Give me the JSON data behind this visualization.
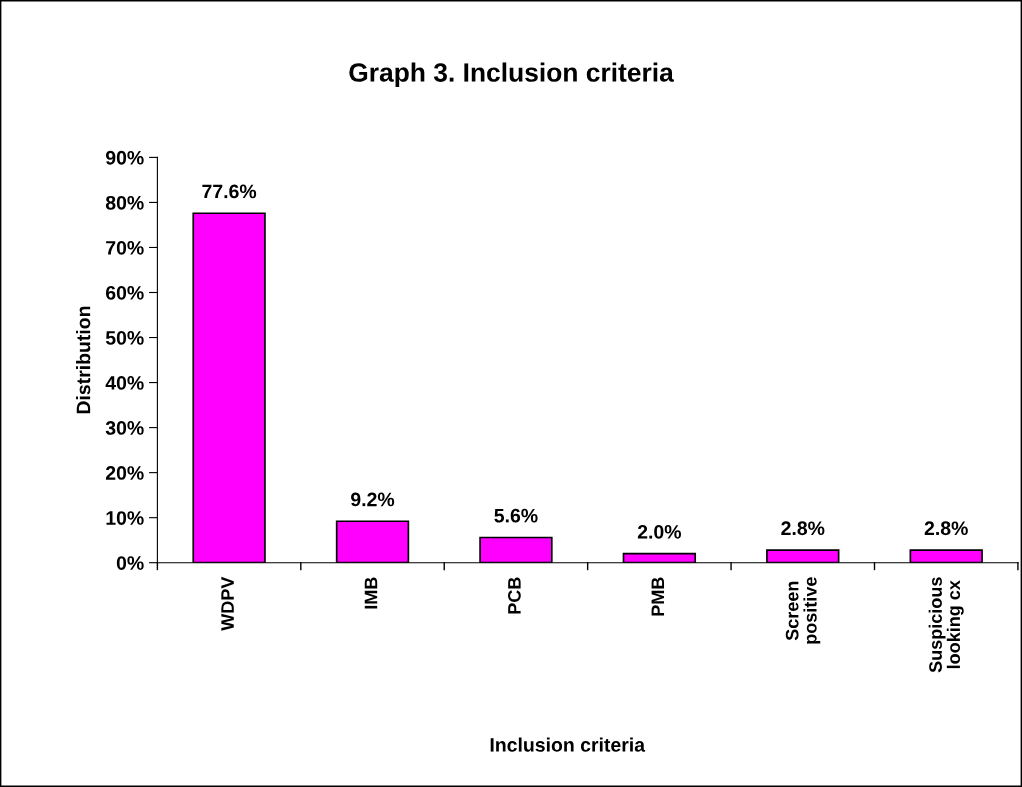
{
  "chart_data": {
    "type": "bar",
    "title": "Graph 3. Inclusion criteria",
    "xlabel": "Inclusion criteria",
    "ylabel": "Distribution",
    "categories": [
      "WDPV",
      "IMB",
      "PCB",
      "PMB",
      "Screen\npositive",
      "Suspicious\nlooking cx"
    ],
    "values": [
      77.6,
      9.2,
      5.6,
      2.0,
      2.8,
      2.8
    ],
    "value_labels": [
      "77.6%",
      "9.2%",
      "5.6%",
      "2.0%",
      "2.8%",
      "2.8%"
    ],
    "color": "#ff00ff",
    "ylim": [
      0,
      90
    ],
    "yticks": [
      {
        "value": 0,
        "label": "0%"
      },
      {
        "value": 10,
        "label": "10%"
      },
      {
        "value": 20,
        "label": "20%"
      },
      {
        "value": 30,
        "label": "30%"
      },
      {
        "value": 40,
        "label": "40%"
      },
      {
        "value": 50,
        "label": "50%"
      },
      {
        "value": 60,
        "label": "60%"
      },
      {
        "value": 70,
        "label": "70%"
      },
      {
        "value": 80,
        "label": "80%"
      },
      {
        "value": 90,
        "label": "90%"
      }
    ],
    "grid": false,
    "legend": false
  }
}
